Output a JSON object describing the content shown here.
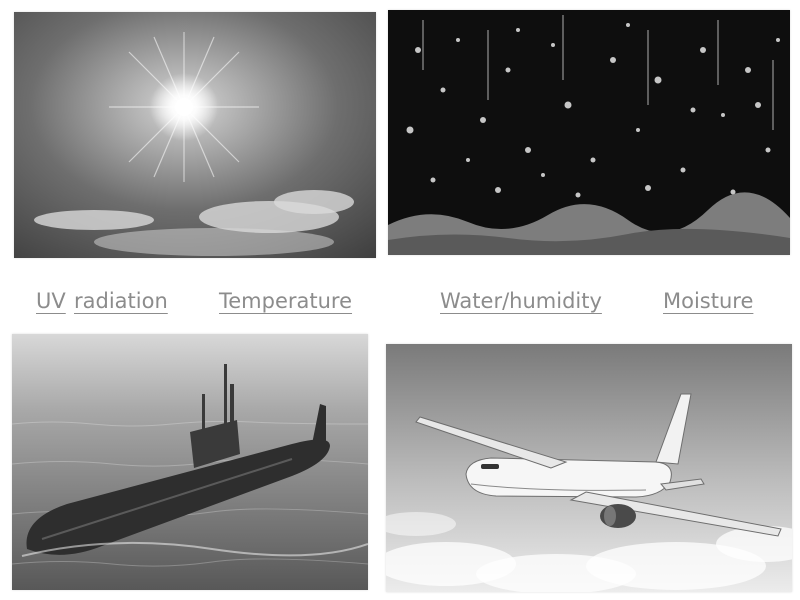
{
  "labels": {
    "uv": "UV",
    "radiation": "radiation",
    "temperature": "Temperature",
    "water_humidity": "Water/humidity",
    "moisture": "Moisture"
  },
  "images": {
    "sun": "sun-in-sky-photo",
    "rain": "water-drops-photo",
    "submarine": "submarine-photo",
    "airplane": "airplane-photo"
  },
  "colors": {
    "label_text": "#8c8c8c"
  }
}
